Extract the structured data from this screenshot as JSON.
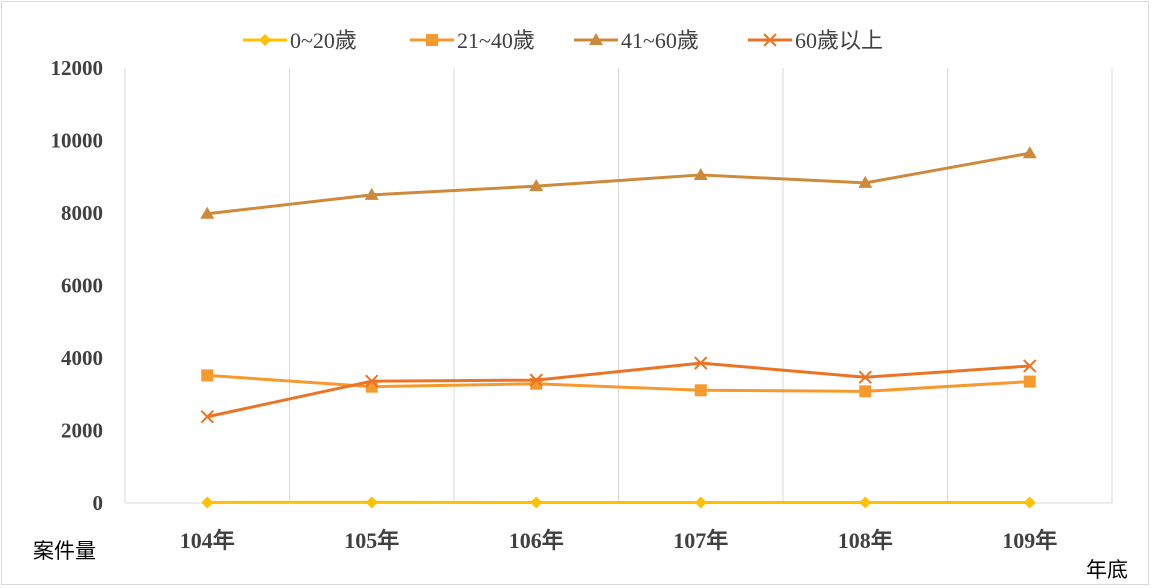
{
  "chart_data": {
    "type": "line",
    "categories": [
      "104年",
      "105年",
      "106年",
      "107年",
      "108年",
      "109年"
    ],
    "series": [
      {
        "name": "0~20歲",
        "values": [
          15,
          18,
          15,
          15,
          15,
          15
        ],
        "color": "#FFC000",
        "marker": "diamond"
      },
      {
        "name": "21~40歲",
        "values": [
          3520,
          3210,
          3290,
          3110,
          3080,
          3350
        ],
        "color": "#F79A2E",
        "marker": "square"
      },
      {
        "name": "41~60歲",
        "values": [
          7980,
          8500,
          8740,
          9050,
          8830,
          9650
        ],
        "color": "#CD8A3C",
        "marker": "triangle"
      },
      {
        "name": "60歲以上",
        "values": [
          2380,
          3360,
          3390,
          3860,
          3470,
          3780
        ],
        "color": "#EB7424",
        "marker": "x"
      }
    ],
    "ylim": [
      0,
      12000
    ],
    "yticks": [
      "0",
      "2000",
      "4000",
      "6000",
      "8000",
      "10000",
      "12000"
    ],
    "ylabel": "案件量",
    "xlabel": "年底",
    "legend_position": "top",
    "grid": "vertical"
  }
}
